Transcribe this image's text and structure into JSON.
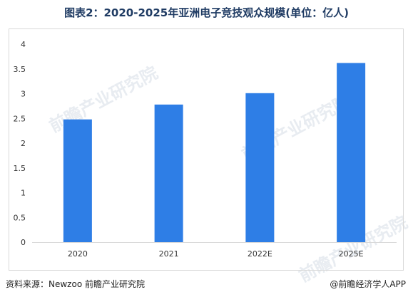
{
  "title": "图表2：2020-2025年亚洲电子竞技观众规模(单位：亿人)",
  "source": "资料来源：Newzoo 前瞻产业研究院",
  "brand": "@前瞻经济学人APP",
  "watermark": "前瞻产业研究院",
  "colors": {
    "bar": "#2e7ee6",
    "axis": "#d9d9d9",
    "tick_text": "#333333"
  },
  "chart_data": {
    "type": "bar",
    "title": "图表2：2020-2025年亚洲电子竞技观众规模(单位：亿人)",
    "categories": [
      "2020",
      "2021",
      "2022E",
      "2025E"
    ],
    "values": [
      2.48,
      2.78,
      3.01,
      3.62
    ],
    "ylim": [
      0,
      4
    ],
    "yticks": [
      "0",
      "0.5",
      "1",
      "1.5",
      "2",
      "2.5",
      "3",
      "3.5",
      "4"
    ],
    "xlabel": "",
    "ylabel": "",
    "grid": false,
    "legend": "none"
  }
}
